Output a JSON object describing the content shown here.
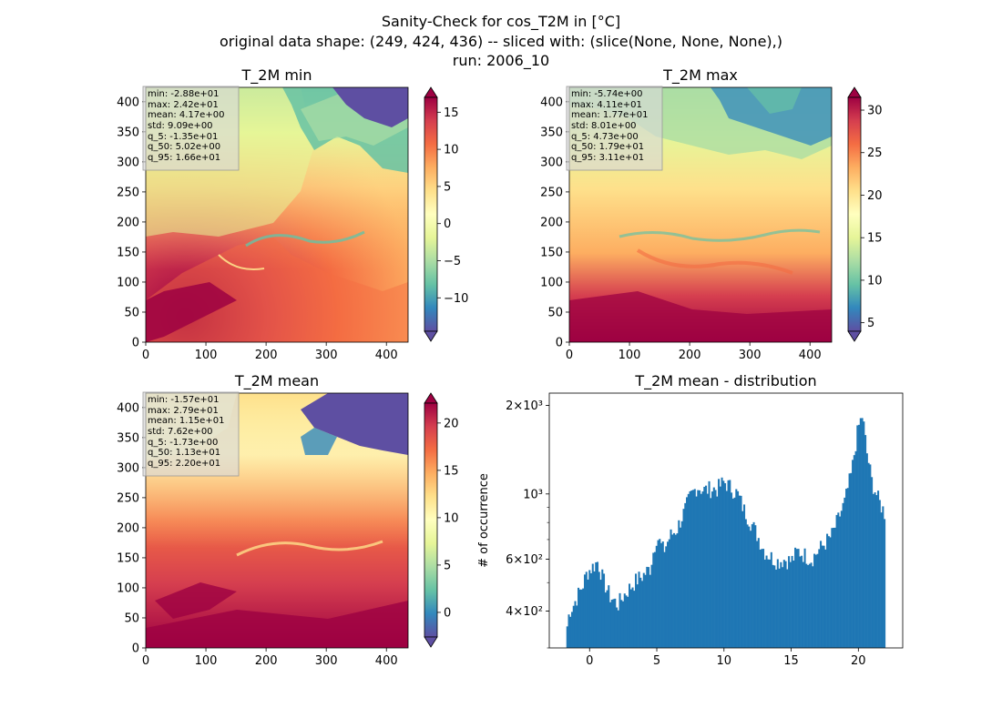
{
  "figure": {
    "title_line1": "Sanity-Check for cos_T2M in [°C]",
    "title_line2": "original data shape: (249, 424, 436) -- sliced with: (slice(None, None, None),)",
    "title_line3": "run: 2006_10"
  },
  "colormap": {
    "name": "Spectral_r",
    "stops": [
      "#5e4fa2",
      "#3288bd",
      "#66c2a5",
      "#abdda4",
      "#e6f598",
      "#ffffbf",
      "#fee08b",
      "#fdae61",
      "#f46d43",
      "#d53e4f",
      "#9e0142"
    ]
  },
  "chart_data": [
    {
      "type": "heatmap",
      "title": "T_2M min",
      "xlim": [
        0,
        436
      ],
      "ylim": [
        0,
        424
      ],
      "xticks": [
        "0",
        "100",
        "200",
        "300",
        "400"
      ],
      "yticks": [
        "0",
        "50",
        "100",
        "150",
        "200",
        "250",
        "300",
        "350",
        "400"
      ],
      "colorbar": {
        "range": [
          -14.5,
          17.0
        ],
        "ticks": [
          "−10",
          "−5",
          "0",
          "5",
          "10",
          "15"
        ],
        "tick_values": [
          -10,
          -5,
          0,
          5,
          10,
          15
        ]
      },
      "stats": [
        "min: -2.88e+01",
        "max: 2.42e+01",
        "mean: 4.17e+00",
        "std: 9.09e+00",
        "q_5: -1.35e+01",
        "q_50: 5.02e+00",
        "q_95: 1.66e+01"
      ]
    },
    {
      "type": "heatmap",
      "title": "T_2M max",
      "xlim": [
        0,
        436
      ],
      "ylim": [
        0,
        424
      ],
      "xticks": [
        "0",
        "100",
        "200",
        "300",
        "400"
      ],
      "yticks": [
        "0",
        "50",
        "100",
        "150",
        "200",
        "250",
        "300",
        "350",
        "400"
      ],
      "colorbar": {
        "range": [
          4.0,
          31.5
        ],
        "ticks": [
          "5",
          "10",
          "15",
          "20",
          "25",
          "30"
        ],
        "tick_values": [
          5,
          10,
          15,
          20,
          25,
          30
        ]
      },
      "stats": [
        "min: -5.74e+00",
        "max: 4.11e+01",
        "mean: 1.77e+01",
        "std: 8.01e+00",
        "q_5: 4.73e+00",
        "q_50: 1.79e+01",
        "q_95: 3.11e+01"
      ]
    },
    {
      "type": "heatmap",
      "title": "T_2M mean",
      "xlim": [
        0,
        436
      ],
      "ylim": [
        0,
        424
      ],
      "xticks": [
        "0",
        "100",
        "200",
        "300",
        "400"
      ],
      "yticks": [
        "0",
        "50",
        "100",
        "150",
        "200",
        "250",
        "300",
        "350",
        "400"
      ],
      "colorbar": {
        "range": [
          -2.6,
          22.1
        ],
        "ticks": [
          "0",
          "5",
          "10",
          "15",
          "20"
        ],
        "tick_values": [
          0,
          5,
          10,
          15,
          20
        ]
      },
      "stats": [
        "min: -1.57e+01",
        "max: 2.79e+01",
        "mean: 1.15e+01",
        "std: 7.62e+00",
        "q_5: -1.73e+00",
        "q_50: 1.13e+01",
        "q_95: 2.20e+01"
      ]
    },
    {
      "type": "bar",
      "title": "T_2M mean - distribution",
      "ylabel": "# of occurrence",
      "xlabel": "",
      "xlim": [
        -3.0,
        23.3
      ],
      "ylim": [
        300,
        2200
      ],
      "log_y": true,
      "xticks": [
        "0",
        "5",
        "10",
        "15",
        "20"
      ],
      "xtick_values": [
        0,
        5,
        10,
        15,
        20
      ],
      "yticks": [
        "4×10²",
        "6×10²",
        "10³",
        "2×10³"
      ],
      "ytick_values": [
        400,
        600,
        1000,
        2000
      ],
      "bin_range": [
        -1.73,
        22.0
      ],
      "color": "#1f77b4",
      "envelope": [
        [
          -1.73,
          340
        ],
        [
          -1.5,
          400
        ],
        [
          -1.2,
          420
        ],
        [
          -0.5,
          490
        ],
        [
          -0.2,
          540
        ],
        [
          0.3,
          570
        ],
        [
          0.6,
          590
        ],
        [
          1.0,
          510
        ],
        [
          1.5,
          450
        ],
        [
          2.1,
          420
        ],
        [
          2.5,
          450
        ],
        [
          3.0,
          480
        ],
        [
          3.5,
          510
        ],
        [
          4.0,
          530
        ],
        [
          4.5,
          560
        ],
        [
          5.0,
          720
        ],
        [
          5.5,
          640
        ],
        [
          6.0,
          720
        ],
        [
          6.5,
          760
        ],
        [
          7.0,
          860
        ],
        [
          7.5,
          980
        ],
        [
          8.0,
          1060
        ],
        [
          8.5,
          1030
        ],
        [
          9.0,
          1040
        ],
        [
          9.5,
          1040
        ],
        [
          10.0,
          1100
        ],
        [
          10.5,
          1050
        ],
        [
          11.0,
          1000
        ],
        [
          11.5,
          880
        ],
        [
          12.0,
          800
        ],
        [
          12.5,
          720
        ],
        [
          13.0,
          640
        ],
        [
          13.5,
          610
        ],
        [
          14.0,
          590
        ],
        [
          14.5,
          600
        ],
        [
          15.0,
          590
        ],
        [
          15.5,
          640
        ],
        [
          16.0,
          620
        ],
        [
          16.5,
          600
        ],
        [
          17.0,
          640
        ],
        [
          17.5,
          680
        ],
        [
          18.0,
          720
        ],
        [
          18.5,
          820
        ],
        [
          19.0,
          940
        ],
        [
          19.5,
          1180
        ],
        [
          20.0,
          1680
        ],
        [
          20.3,
          1850
        ],
        [
          20.6,
          1400
        ],
        [
          21.0,
          1100
        ],
        [
          21.5,
          950
        ],
        [
          22.0,
          850
        ]
      ]
    }
  ]
}
